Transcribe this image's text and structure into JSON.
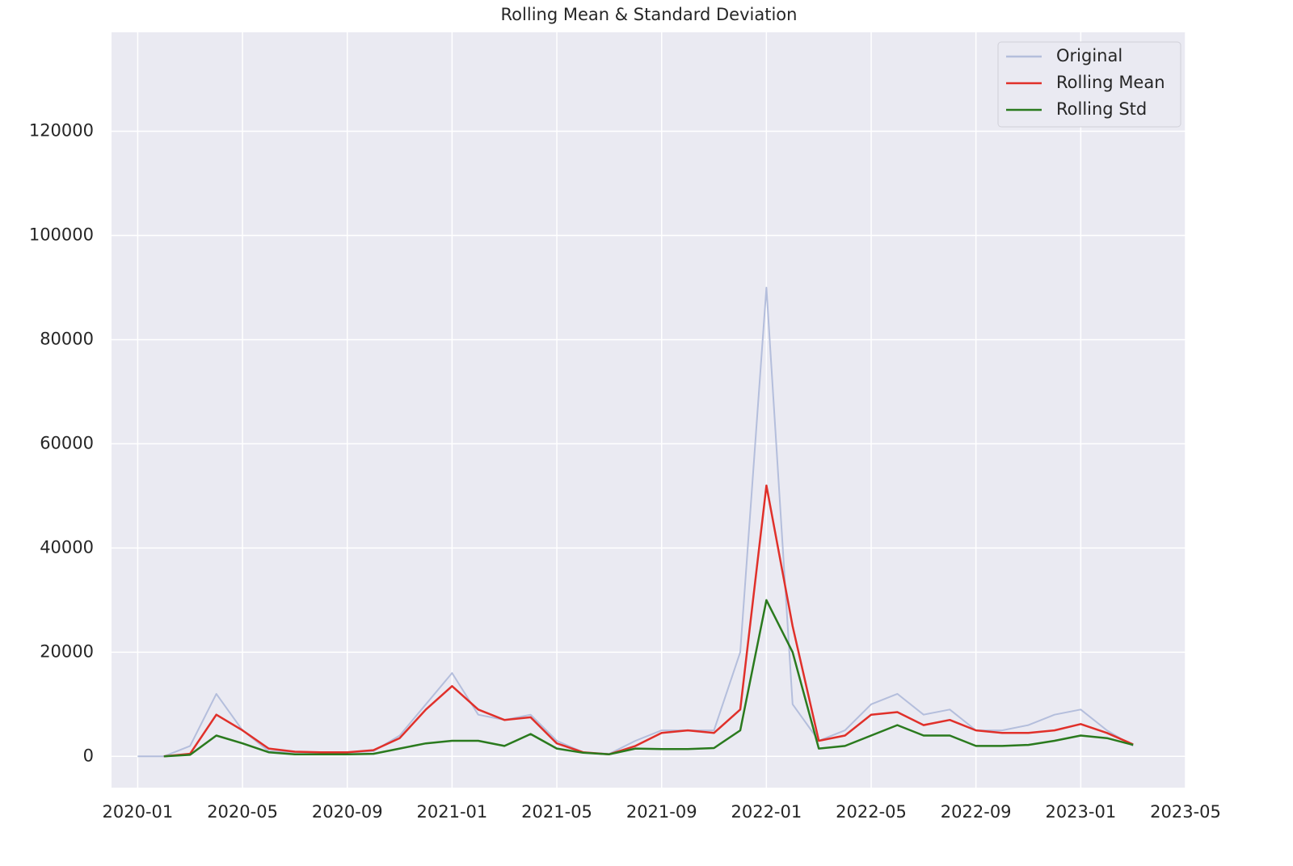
{
  "chart_data": {
    "type": "line",
    "title": "Rolling Mean & Standard Deviation",
    "x": [
      "2020-01",
      "2020-02",
      "2020-03",
      "2020-04",
      "2020-05",
      "2020-06",
      "2020-07",
      "2020-08",
      "2020-09",
      "2020-10",
      "2020-11",
      "2020-12",
      "2021-01",
      "2021-02",
      "2021-03",
      "2021-04",
      "2021-05",
      "2021-06",
      "2021-07",
      "2021-08",
      "2021-09",
      "2021-10",
      "2021-11",
      "2021-12",
      "2022-01",
      "2022-02",
      "2022-03",
      "2022-04",
      "2022-05",
      "2022-06",
      "2022-07",
      "2022-08",
      "2022-09",
      "2022-10",
      "2022-11",
      "2022-12",
      "2023-01",
      "2023-02",
      "2023-03"
    ],
    "series": [
      {
        "name": "Original",
        "color": "#b4bedc",
        "values": [
          0,
          0,
          2000,
          12000,
          5000,
          1000,
          800,
          700,
          700,
          1000,
          4000,
          10000,
          16000,
          8000,
          7000,
          8000,
          3000,
          800,
          500,
          3000,
          5000,
          5000,
          5000,
          20000,
          90000,
          10000,
          3000,
          5000,
          10000,
          12000,
          8000,
          9000,
          5000,
          5000,
          6000,
          8000,
          9000,
          5000,
          2000
        ]
      },
      {
        "name": "Rolling Mean",
        "color": "#e0302a",
        "values": [
          null,
          0,
          500,
          8000,
          5000,
          1500,
          900,
          800,
          800,
          1200,
          3500,
          9000,
          13500,
          9000,
          7000,
          7500,
          2500,
          800,
          400,
          2000,
          4500,
          5000,
          4500,
          9000,
          52000,
          25000,
          3000,
          4000,
          8000,
          8500,
          6000,
          7000,
          5000,
          4500,
          4500,
          5000,
          6200,
          4500,
          2300
        ]
      },
      {
        "name": "Rolling Std",
        "color": "#2a7a1e",
        "values": [
          null,
          0,
          300,
          4000,
          2500,
          800,
          400,
          400,
          400,
          500,
          1500,
          2500,
          3000,
          3000,
          2000,
          4300,
          1500,
          700,
          400,
          1500,
          1400,
          1400,
          1600,
          5000,
          30000,
          20000,
          1500,
          2000,
          4000,
          6000,
          4000,
          4000,
          2000,
          2000,
          2200,
          3000,
          4000,
          3500,
          2200
        ]
      }
    ],
    "xlim": [
      "2019-12",
      "2023-05"
    ],
    "xticks": [
      "2020-01",
      "2020-05",
      "2020-09",
      "2021-01",
      "2021-05",
      "2021-09",
      "2022-01",
      "2022-05",
      "2022-09",
      "2023-01",
      "2023-05"
    ],
    "ylim": [
      -6000,
      139000
    ],
    "yticks": [
      0,
      20000,
      40000,
      60000,
      80000,
      100000,
      120000
    ],
    "grid": true,
    "legend": "upper right"
  }
}
